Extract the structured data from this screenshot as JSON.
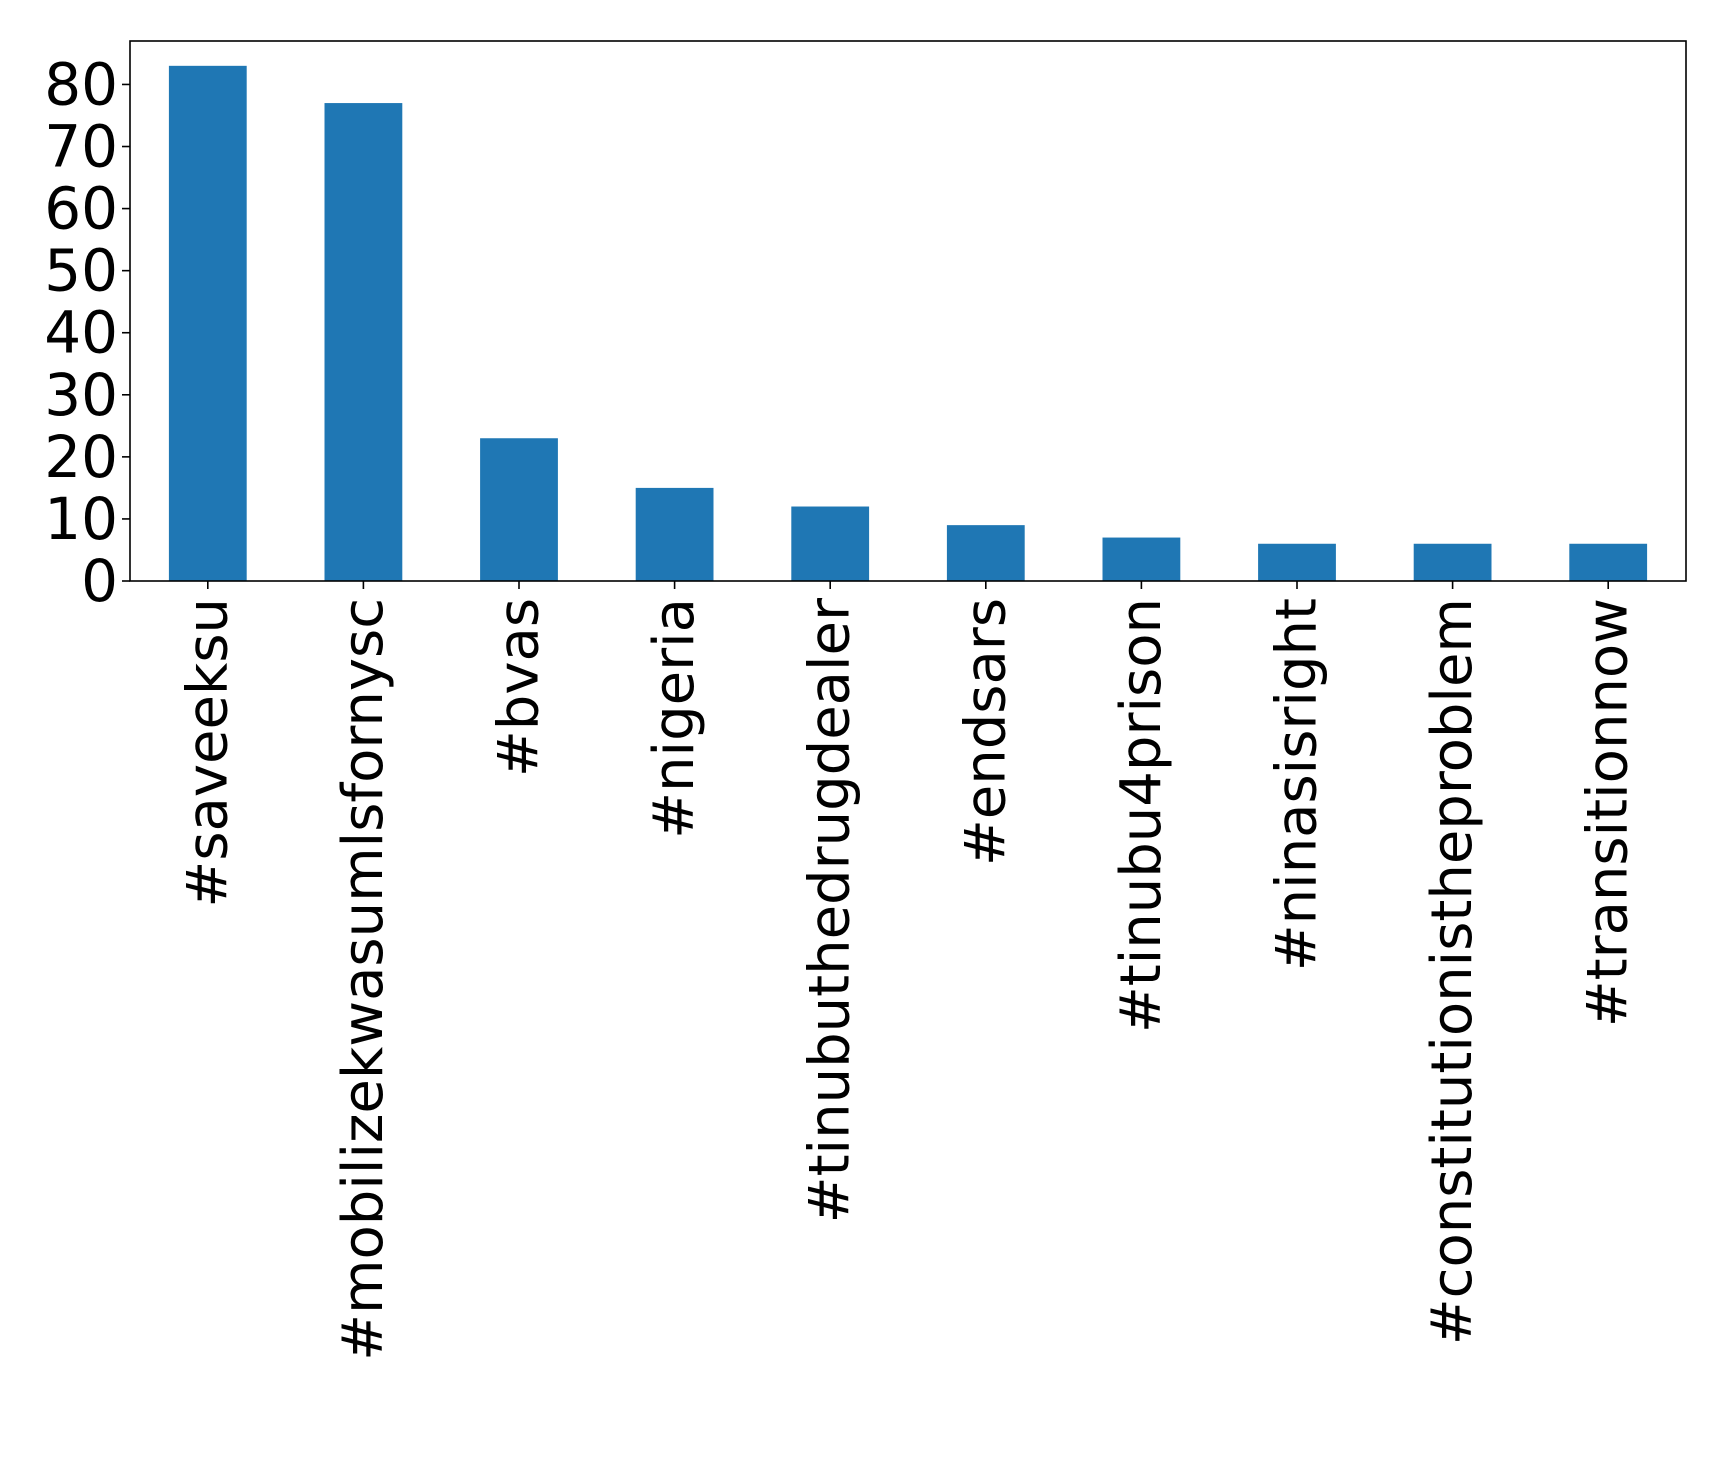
{
  "chart_data": {
    "type": "bar",
    "title": "",
    "xlabel": "",
    "ylabel": "",
    "categories": [
      "#saveeksu",
      "#mobilizekwasumlsfornysc",
      "#bvas",
      "#nigeria",
      "#tinubuthedrugdealer",
      "#endsars",
      "#tinubu4prison",
      "#ninasisright",
      "#constitutionistheproblem",
      "#transitionnow"
    ],
    "values": [
      83,
      77,
      23,
      15,
      12,
      9,
      7,
      6,
      6,
      6
    ],
    "ylim": [
      0,
      87
    ],
    "yticks": [
      0,
      10,
      20,
      30,
      40,
      50,
      60,
      70,
      80
    ],
    "bar_color": "#1f77b4",
    "grid": false,
    "legend": "none"
  }
}
